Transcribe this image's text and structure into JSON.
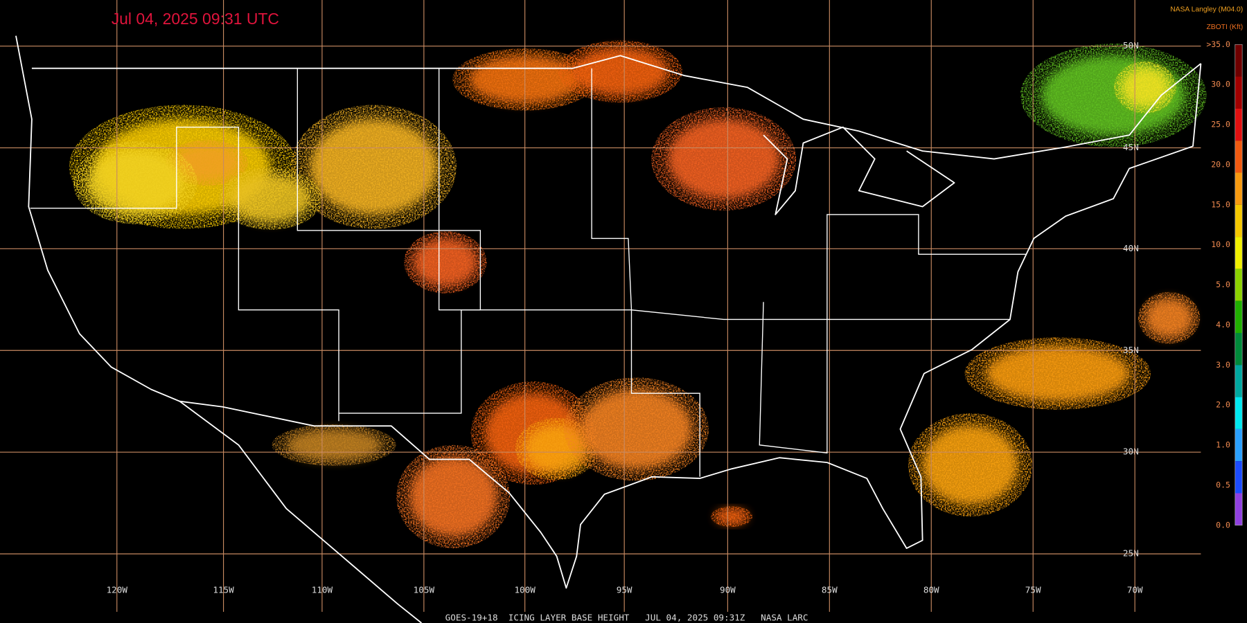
{
  "header": {
    "timestamp": "Jul 04, 2025 09:31 UTC",
    "source": "NASA Langley (M04.0)",
    "product": "ZBOTI (Kft)"
  },
  "legend": {
    "labels": [
      ">35.0",
      "30.0",
      "25.0",
      "20.0",
      "15.0",
      "10.0",
      "5.0",
      "4.0",
      "3.0",
      "2.0",
      "1.0",
      "0.5",
      "0.0"
    ],
    "colors": [
      "#6e0000",
      "#a00000",
      "#e01010",
      "#f05a10",
      "#f79a10",
      "#f5c800",
      "#f0f000",
      "#8cd200",
      "#20b000",
      "#008a3a",
      "#00a8a0",
      "#00e8f0",
      "#2aa0ff",
      "#1c4cff",
      "#9040e0"
    ]
  },
  "map": {
    "lat_labels": [
      "50N",
      "45N",
      "40N",
      "35N",
      "30N",
      "25N"
    ],
    "lon_labels": [
      "120W",
      "115W",
      "110W",
      "105W",
      "100W",
      "95W",
      "90W",
      "85W",
      "80W",
      "75W",
      "70W"
    ]
  },
  "footer": "GOES-19+18  ICING LAYER BASE HEIGHT   JUL 04, 2025 09:31Z   NASA LARC"
}
